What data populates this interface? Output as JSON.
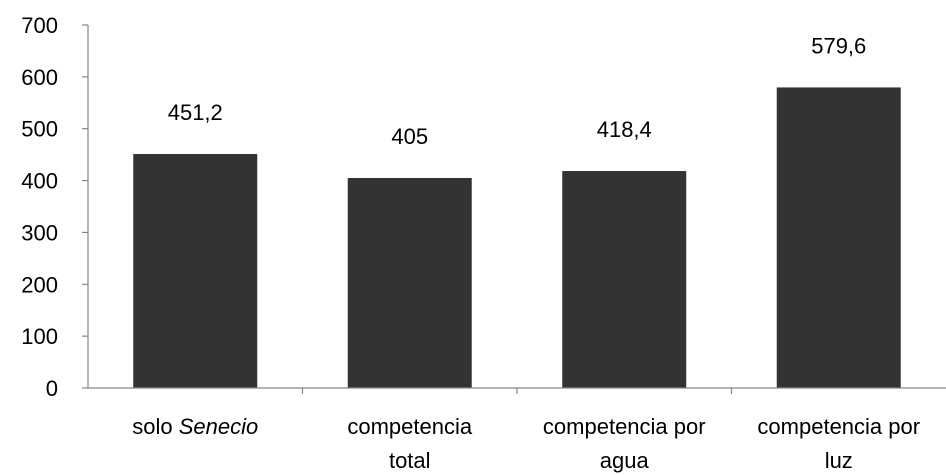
{
  "chart_data": {
    "type": "bar",
    "title": "",
    "xlabel": "",
    "ylabel": "",
    "ylim": [
      0,
      700
    ],
    "yticks": [
      0,
      100,
      200,
      300,
      400,
      500,
      600,
      700
    ],
    "ytick_labels": [
      "0",
      "100",
      "200",
      "300",
      "400",
      "500",
      "600",
      "700"
    ],
    "grid": false,
    "legend": "none",
    "bar_color": "#333333",
    "categories": [
      "solo Senecio",
      "competencia total",
      "competencia por agua",
      "competencia por luz"
    ],
    "category_lines": [
      [
        [
          "solo ",
          "normal"
        ],
        [
          "Senecio",
          "italic"
        ]
      ],
      [
        [
          "competencia",
          "normal"
        ],
        [
          "total",
          "normal"
        ]
      ],
      [
        [
          "competencia por",
          "normal"
        ],
        [
          "agua",
          "normal"
        ]
      ],
      [
        [
          "competencia por",
          "normal"
        ],
        [
          "luz",
          "normal"
        ]
      ]
    ],
    "values": [
      451.2,
      405,
      418.4,
      579.6
    ],
    "data_labels": [
      "451,2",
      "405",
      "418,4",
      "579,6"
    ]
  }
}
